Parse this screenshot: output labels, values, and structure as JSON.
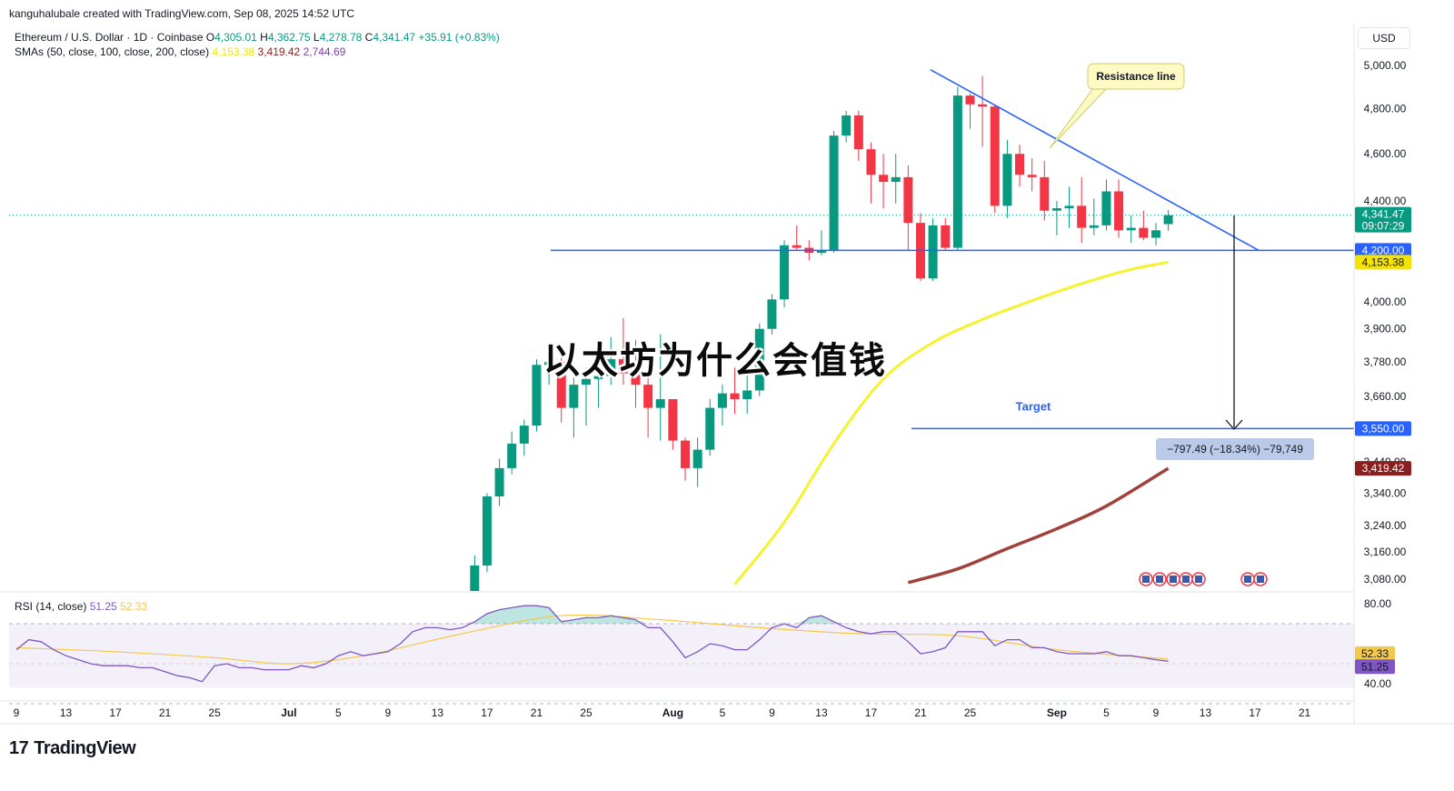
{
  "header": {
    "created_by": "kanguhalubale created with TradingView.com, Sep 08, 2025 14:52 UTC"
  },
  "legend": {
    "symbol": "Ethereum / U.S. Dollar · 1D · Coinbase",
    "o_label": "O",
    "o_value": "4,305.01",
    "h_label": "H",
    "h_value": "4,362.75",
    "l_label": "L",
    "l_value": "4,278.78",
    "c_label": "C",
    "c_value": "4,341.47",
    "change": "+35.91 (+0.83%)",
    "sma_label": "SMAs (50, close, 100, close, 200, close)",
    "sma50_value": "4,153.38",
    "sma100_value": "3,419.42",
    "sma200_value": "2,744.69"
  },
  "currency": "USD",
  "overlay_title": "以太坊为什么会值钱",
  "brand": {
    "logo": "17",
    "name": "TradingView"
  },
  "colors": {
    "up": "#089981",
    "down": "#f23645",
    "blue_line": "#2962ff",
    "sma50": "#f5f230",
    "sma100": "#a0413c",
    "rsi": "#7e57c2",
    "rsi_ma": "#f2c94c"
  },
  "chart_data": {
    "type": "candlestick",
    "y_axis": {
      "labels": [
        "5,000.00",
        "4,800.00",
        "4,600.00",
        "4,400.00",
        "4,000.00",
        "3,900.00",
        "3,780.00",
        "3,660.00",
        "3,440.00",
        "3,340.00",
        "3,240.00",
        "3,160.00",
        "3,080.00"
      ],
      "values": [
        5000,
        4800,
        4600,
        4400,
        4000,
        3900,
        3780,
        3660,
        3440,
        3340,
        3240,
        3160,
        3080
      ],
      "scale": "log"
    },
    "x_axis": {
      "labels": [
        "9",
        "13",
        "17",
        "21",
        "25",
        "Jul",
        "5",
        "9",
        "13",
        "17",
        "21",
        "25",
        "Aug",
        "5",
        "9",
        "13",
        "17",
        "21",
        "25",
        "Sep",
        "5",
        "9",
        "13",
        "17",
        "21"
      ],
      "day_index": [
        0,
        4,
        8,
        12,
        16,
        22,
        26,
        30,
        34,
        38,
        42,
        46,
        53,
        57,
        61,
        65,
        69,
        73,
        77,
        84,
        88,
        92,
        96,
        100,
        104
      ]
    },
    "price_tags": [
      {
        "value": 4341.47,
        "label": "4,341.47",
        "sub": "09:07:29",
        "color": "#089981"
      },
      {
        "value": 4200,
        "label": "4,200.00",
        "color": "#2962ff"
      },
      {
        "value": 4153.38,
        "label": "4,153.38",
        "color": "#f5e400",
        "text_color": "#131722"
      },
      {
        "value": 3550,
        "label": "3,550.00",
        "color": "#2962ff"
      },
      {
        "value": 3419.42,
        "label": "3,419.42",
        "color": "#8b1e1e"
      }
    ],
    "candles": [
      [
        36,
        2950,
        3000,
        2930,
        2990
      ],
      [
        37,
        2990,
        3150,
        2980,
        3120
      ],
      [
        38,
        3120,
        3340,
        3100,
        3330
      ],
      [
        39,
        3330,
        3450,
        3300,
        3420
      ],
      [
        40,
        3420,
        3540,
        3400,
        3500
      ],
      [
        41,
        3500,
        3580,
        3460,
        3560
      ],
      [
        42,
        3560,
        3790,
        3540,
        3770
      ],
      [
        43,
        3770,
        3830,
        3700,
        3780
      ],
      [
        44,
        3780,
        3800,
        3570,
        3620
      ],
      [
        45,
        3620,
        3750,
        3520,
        3700
      ],
      [
        46,
        3700,
        3760,
        3560,
        3720
      ],
      [
        47,
        3720,
        3800,
        3620,
        3730
      ],
      [
        48,
        3730,
        3870,
        3700,
        3790
      ],
      [
        49,
        3790,
        3940,
        3700,
        3740
      ],
      [
        50,
        3740,
        3860,
        3620,
        3700
      ],
      [
        51,
        3700,
        3760,
        3520,
        3620
      ],
      [
        52,
        3620,
        3880,
        3510,
        3650
      ],
      [
        53,
        3650,
        3650,
        3480,
        3510
      ],
      [
        54,
        3510,
        3520,
        3380,
        3420
      ],
      [
        55,
        3420,
        3520,
        3360,
        3480
      ],
      [
        56,
        3480,
        3650,
        3460,
        3620
      ],
      [
        57,
        3620,
        3700,
        3560,
        3670
      ],
      [
        58,
        3670,
        3760,
        3600,
        3650
      ],
      [
        59,
        3650,
        3750,
        3600,
        3680
      ],
      [
        60,
        3680,
        3920,
        3660,
        3900
      ],
      [
        61,
        3900,
        4030,
        3880,
        4010
      ],
      [
        62,
        4010,
        4240,
        3980,
        4220
      ],
      [
        63,
        4220,
        4300,
        4200,
        4210
      ],
      [
        64,
        4210,
        4240,
        4160,
        4190
      ],
      [
        65,
        4190,
        4280,
        4180,
        4200
      ],
      [
        66,
        4200,
        4700,
        4190,
        4680
      ],
      [
        67,
        4680,
        4790,
        4650,
        4770
      ],
      [
        68,
        4770,
        4790,
        4570,
        4620
      ],
      [
        69,
        4620,
        4650,
        4390,
        4510
      ],
      [
        70,
        4510,
        4600,
        4370,
        4480
      ],
      [
        71,
        4480,
        4600,
        4390,
        4500
      ],
      [
        72,
        4500,
        4550,
        4200,
        4310
      ],
      [
        73,
        4310,
        4350,
        4080,
        4090
      ],
      [
        74,
        4090,
        4330,
        4080,
        4300
      ],
      [
        75,
        4300,
        4330,
        4200,
        4210
      ],
      [
        76,
        4210,
        4900,
        4200,
        4860
      ],
      [
        77,
        4860,
        4870,
        4710,
        4820
      ],
      [
        78,
        4820,
        4950,
        4630,
        4810
      ],
      [
        79,
        4810,
        4820,
        4350,
        4380
      ],
      [
        80,
        4380,
        4660,
        4330,
        4600
      ],
      [
        81,
        4600,
        4640,
        4460,
        4510
      ],
      [
        82,
        4510,
        4580,
        4440,
        4500
      ],
      [
        83,
        4500,
        4570,
        4320,
        4360
      ],
      [
        84,
        4360,
        4400,
        4260,
        4370
      ],
      [
        85,
        4370,
        4460,
        4290,
        4380
      ],
      [
        86,
        4380,
        4500,
        4230,
        4290
      ],
      [
        87,
        4290,
        4410,
        4260,
        4300
      ],
      [
        88,
        4300,
        4490,
        4280,
        4440
      ],
      [
        89,
        4440,
        4490,
        4250,
        4280
      ],
      [
        90,
        4280,
        4340,
        4230,
        4290
      ],
      [
        91,
        4290,
        4360,
        4240,
        4250
      ],
      [
        92,
        4250,
        4310,
        4220,
        4280
      ],
      [
        93,
        4305.01,
        4362.75,
        4278.78,
        4341.47
      ]
    ],
    "sma50": [
      [
        58,
        3065
      ],
      [
        62,
        3250
      ],
      [
        66,
        3500
      ],
      [
        70,
        3720
      ],
      [
        74,
        3850
      ],
      [
        78,
        3935
      ],
      [
        82,
        4005
      ],
      [
        86,
        4070
      ],
      [
        90,
        4125
      ],
      [
        93,
        4153.38
      ]
    ],
    "sma100": [
      [
        72,
        3070
      ],
      [
        76,
        3110
      ],
      [
        80,
        3170
      ],
      [
        84,
        3230
      ],
      [
        88,
        3300
      ],
      [
        93,
        3419.42
      ]
    ],
    "annotations": {
      "support_line": {
        "value": 4200,
        "label": "4,200.00"
      },
      "target_line": {
        "value": 3550,
        "label": "Target"
      },
      "resistance_label": "Resistance line",
      "measure_label": "−797.49 (−18.34%) −79,749",
      "resistance_from": [
        76,
        4980
      ],
      "resistance_to": [
        100,
        4200
      ]
    },
    "rsi": {
      "label": "RSI (14, close)",
      "value": "51.25",
      "ma_value": "52.33",
      "levels": [
        80,
        40
      ],
      "level_labels": [
        "80.00",
        "40.00"
      ],
      "tags": [
        {
          "value": 52.33,
          "label": "52.33",
          "color": "#f2c94c"
        },
        {
          "value": 51.25,
          "label": "51.25",
          "color": "#7e57c2"
        }
      ],
      "series": [
        [
          0,
          57
        ],
        [
          1,
          62
        ],
        [
          2,
          61
        ],
        [
          3,
          57
        ],
        [
          4,
          54
        ],
        [
          5,
          52
        ],
        [
          6,
          50
        ],
        [
          7,
          49
        ],
        [
          8,
          49
        ],
        [
          9,
          49
        ],
        [
          10,
          48
        ],
        [
          11,
          48
        ],
        [
          12,
          46
        ],
        [
          13,
          44
        ],
        [
          14,
          43
        ],
        [
          15,
          41
        ],
        [
          16,
          49
        ],
        [
          17,
          50
        ],
        [
          18,
          48
        ],
        [
          19,
          48
        ],
        [
          20,
          47
        ],
        [
          21,
          47
        ],
        [
          22,
          47
        ],
        [
          23,
          49
        ],
        [
          24,
          48
        ],
        [
          25,
          50
        ],
        [
          26,
          54
        ],
        [
          27,
          56
        ],
        [
          28,
          54
        ],
        [
          29,
          55
        ],
        [
          30,
          56
        ],
        [
          31,
          60
        ],
        [
          32,
          66
        ],
        [
          33,
          68
        ],
        [
          34,
          68
        ],
        [
          35,
          67
        ],
        [
          36,
          68
        ],
        [
          37,
          71
        ],
        [
          38,
          75
        ],
        [
          39,
          77
        ],
        [
          40,
          78
        ],
        [
          41,
          79
        ],
        [
          42,
          79
        ],
        [
          43,
          78
        ],
        [
          44,
          71
        ],
        [
          45,
          72
        ],
        [
          46,
          73
        ],
        [
          47,
          73
        ],
        [
          48,
          74
        ],
        [
          49,
          73
        ],
        [
          50,
          72
        ],
        [
          51,
          68
        ],
        [
          52,
          68
        ],
        [
          53,
          61
        ],
        [
          54,
          53
        ],
        [
          55,
          56
        ],
        [
          56,
          60
        ],
        [
          57,
          59
        ],
        [
          58,
          57
        ],
        [
          59,
          57
        ],
        [
          60,
          62
        ],
        [
          61,
          68
        ],
        [
          62,
          70
        ],
        [
          63,
          68
        ],
        [
          64,
          73
        ],
        [
          65,
          74
        ],
        [
          66,
          71
        ],
        [
          67,
          68
        ],
        [
          68,
          66
        ],
        [
          69,
          65
        ],
        [
          70,
          66
        ],
        [
          71,
          66
        ],
        [
          72,
          61
        ],
        [
          73,
          55
        ],
        [
          74,
          56
        ],
        [
          75,
          58
        ],
        [
          76,
          66
        ],
        [
          77,
          66
        ],
        [
          78,
          66
        ],
        [
          79,
          59
        ],
        [
          80,
          62
        ],
        [
          81,
          62
        ],
        [
          82,
          58
        ],
        [
          83,
          58
        ],
        [
          84,
          56
        ],
        [
          85,
          55
        ],
        [
          86,
          55
        ],
        [
          87,
          55
        ],
        [
          88,
          56
        ],
        [
          89,
          54
        ],
        [
          90,
          54
        ],
        [
          91,
          53
        ],
        [
          92,
          52
        ],
        [
          93,
          51.25
        ]
      ],
      "ma_series": [
        [
          0,
          58
        ],
        [
          8,
          56
        ],
        [
          16,
          53
        ],
        [
          22,
          50
        ],
        [
          28,
          54
        ],
        [
          36,
          65
        ],
        [
          44,
          74
        ],
        [
          52,
          72
        ],
        [
          60,
          68
        ],
        [
          68,
          65
        ],
        [
          76,
          64
        ],
        [
          84,
          57
        ],
        [
          93,
          52.33
        ]
      ]
    }
  }
}
